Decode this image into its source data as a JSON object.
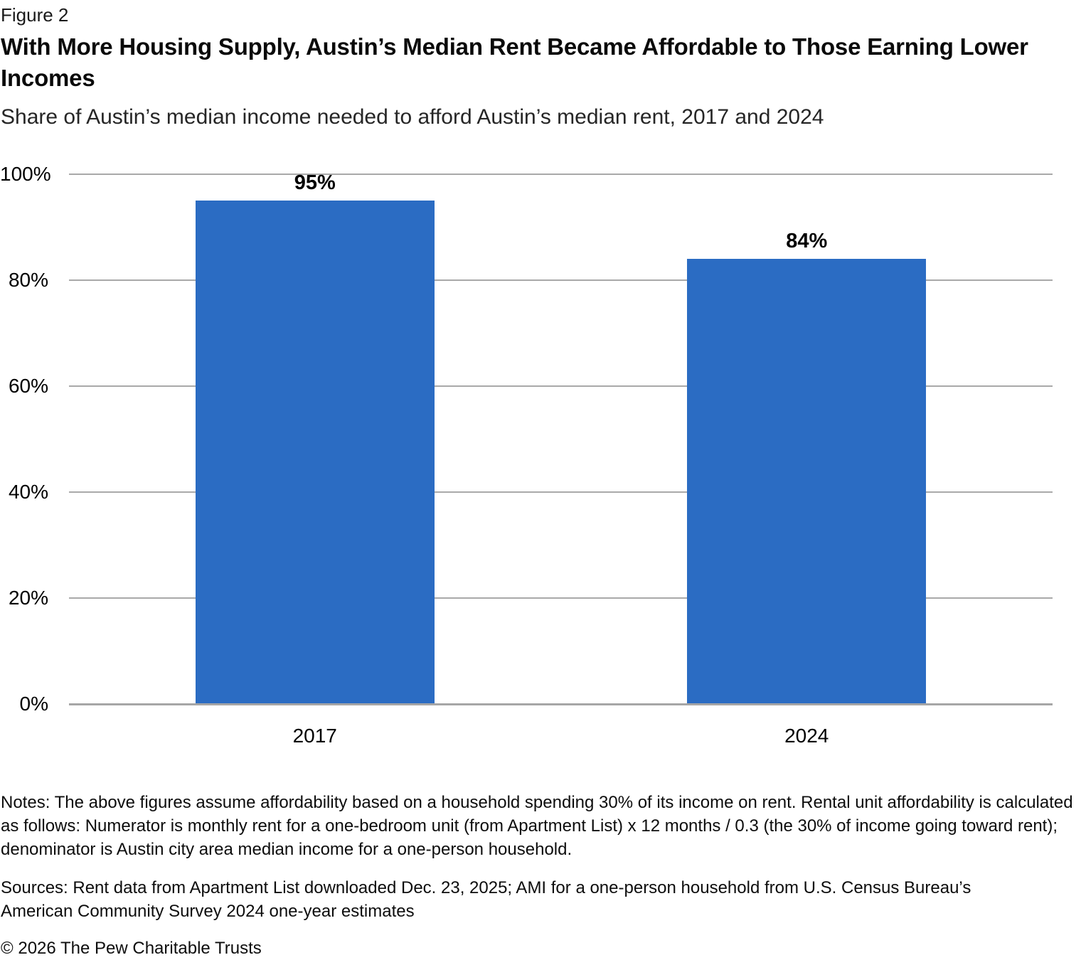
{
  "figure_label": "Figure 2",
  "title": "With More Housing Supply, Austin’s Median Rent Became Affordable to Those Earning Lower Incomes",
  "subtitle": "Share of Austin’s median income needed to afford Austin’s median rent, 2017 and 2024",
  "chart_data": {
    "type": "bar",
    "title": "Share of Austin’s median income needed to afford Austin’s median rent, 2017 and 2024",
    "categories": [
      "2017",
      "2024"
    ],
    "values": [
      95,
      84
    ],
    "data_labels": [
      "95%",
      "84%"
    ],
    "xlabel": "",
    "ylabel": "",
    "ylim": [
      0,
      100
    ],
    "yticks": [
      0,
      20,
      40,
      60,
      80,
      100
    ],
    "ytick_labels": [
      "0%",
      "20%",
      "40%",
      "60%",
      "80%",
      "100%"
    ],
    "grid": "horizontal gridlines on",
    "legend": "none",
    "bar_color": "#2b6cc3",
    "gridline_color": "#a9a9a9",
    "baseline_color": "#a6a6a6",
    "label_color": "#000000"
  },
  "notes": "Notes: The above figures assume affordability based on a household spending 30% of its income on rent. Rental unit affordability is calculated as follows: Numerator is monthly rent for a one-bedroom unit (from Apartment List) x 12 months / 0.3 (the 30% of income going toward rent); denominator is Austin city area median income for a one-person household.",
  "sources": "Sources: Rent data from Apartment List downloaded Dec. 23, 2025; AMI for a one-person household from U.S. Census Bureau’s American Community Survey 2024 one-year estimates",
  "copyright": "© 2026 The Pew Charitable Trusts"
}
